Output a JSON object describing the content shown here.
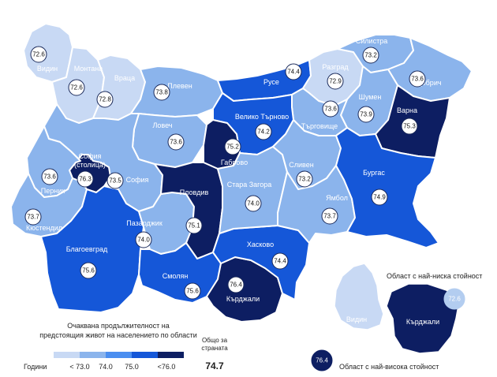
{
  "colors": {
    "c1": "#c8d9f4",
    "c2": "#8bb4ec",
    "c3": "#4a8ef0",
    "c4": "#1557d8",
    "c5": "#0d1e62"
  },
  "regions": [
    {
      "key": "vidin",
      "name": "Видин",
      "value": "72.6"
    },
    {
      "key": "montana",
      "name": "Монтана",
      "value": "72.6"
    },
    {
      "key": "vratsa",
      "name": "Враца",
      "value": "72.8"
    },
    {
      "key": "pleven",
      "name": "Плевен",
      "value": "73.8"
    },
    {
      "key": "lovech",
      "name": "Ловеч",
      "value": "73.6"
    },
    {
      "key": "ruse",
      "name": "Русе",
      "value": "74.4"
    },
    {
      "key": "razgrad",
      "name": "Разград",
      "value": "72.9"
    },
    {
      "key": "silistra",
      "name": "Силистра",
      "value": "73.2"
    },
    {
      "key": "dobrich",
      "name": "Добрич",
      "value": "73.6"
    },
    {
      "key": "shumen",
      "name": "Шумен",
      "value": "73.9"
    },
    {
      "key": "targovishte",
      "name": "Търговище",
      "value": "73.6"
    },
    {
      "key": "varna",
      "name": "Варна",
      "value": "75.3"
    },
    {
      "key": "vtarnovo",
      "name": "Велико Търново",
      "value": "74.2"
    },
    {
      "key": "gabrovo",
      "name": "Габрово",
      "value": "75.2"
    },
    {
      "key": "sofia_cap",
      "name_line1": "София",
      "name_line2": "(столица)",
      "value": "76.3"
    },
    {
      "key": "sofia",
      "name": "София",
      "value": "73.5"
    },
    {
      "key": "pernik",
      "name": "Перник",
      "value": "73.6"
    },
    {
      "key": "kyustendil",
      "name": "Кюстендил",
      "value": "73.7"
    },
    {
      "key": "blagoevgrad",
      "name": "Благоевград",
      "value": "75.6"
    },
    {
      "key": "pazardzhik",
      "name": "Пазарджик",
      "value": "74.0"
    },
    {
      "key": "plovdiv",
      "name": "Пловдив",
      "value": "75.1"
    },
    {
      "key": "smolyan",
      "name": "Смолян",
      "value": "75.6"
    },
    {
      "key": "kardzhali",
      "name": "Кърджали",
      "value": "76.4"
    },
    {
      "key": "haskovo",
      "name": "Хасково",
      "value": "74.4"
    },
    {
      "key": "stara_zagora",
      "name": "Стара Загора",
      "value": "74.0"
    },
    {
      "key": "sliven",
      "name": "Сливен",
      "value": "73.2"
    },
    {
      "key": "yambol",
      "name": "Ямбол",
      "value": "73.7"
    },
    {
      "key": "burgas",
      "name": "Бургас",
      "value": "74.9"
    }
  ],
  "legend": {
    "title_line1": "Очаквана продължителност на",
    "title_line2": "предстоящия живот на населението по области",
    "years_label": "Години",
    "ticks": [
      "< 73.0",
      "74.0",
      "75.0",
      "<76.0"
    ],
    "total_line1": "Общо за",
    "total_line2": "страната",
    "total_value": "74.7"
  },
  "inset": {
    "lowest_label": "Област с най-ниска стойност",
    "lowest_region": "Видин",
    "lowest_value": "72.6",
    "highest_label": "Област с най-висока стойност",
    "highest_region": "Кърджали",
    "highest_value": "76.4"
  }
}
